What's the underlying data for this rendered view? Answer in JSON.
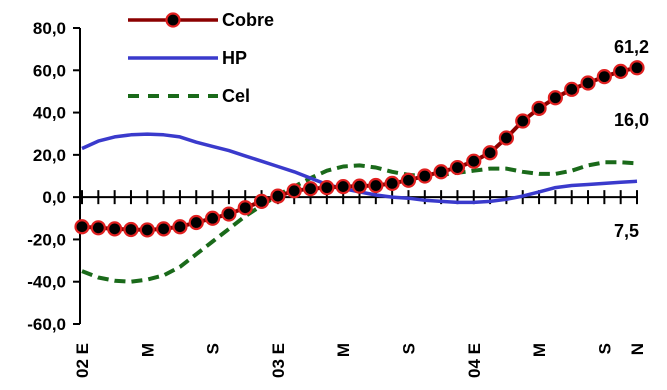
{
  "chart_data": {
    "type": "line",
    "ylim": [
      -60,
      80
    ],
    "yticks": [
      "80,0",
      "60,0",
      "40,0",
      "20,0",
      "0,0",
      "-20,0",
      "-40,0",
      "-60,0"
    ],
    "ytick_values": [
      80,
      60,
      40,
      20,
      0,
      -20,
      -40,
      -60
    ],
    "xtick_labels": [
      "02 E",
      "M",
      "S",
      "03 E",
      "M",
      "S",
      "04 E",
      "M",
      "S",
      "N"
    ],
    "xtick_index": [
      0,
      4,
      8,
      12,
      16,
      20,
      24,
      28,
      32,
      34
    ],
    "x_count": 35,
    "grid": false,
    "legend_position": "top",
    "series": [
      {
        "name": "Cobre",
        "color": "#8b0000",
        "marker": "circle",
        "values": [
          -14,
          -14.5,
          -15,
          -15.3,
          -15.5,
          -15,
          -14,
          -12,
          -10,
          -8,
          -5,
          -2,
          0.5,
          3,
          4,
          4.5,
          5,
          5.2,
          5.5,
          6.5,
          8,
          10,
          12,
          14,
          17,
          21,
          28,
          36,
          42,
          47,
          51,
          54,
          57,
          59.5,
          61.2
        ]
      },
      {
        "name": "HP",
        "color": "#3a3acc",
        "values": [
          23,
          26.5,
          28.5,
          29.5,
          29.8,
          29.5,
          28.5,
          26,
          24,
          22,
          19.5,
          17,
          14.5,
          12,
          9,
          6,
          4,
          2.5,
          1,
          0,
          -0.5,
          -1.5,
          -2,
          -2.5,
          -2.5,
          -2,
          -1,
          0.5,
          2.5,
          4.5,
          5.5,
          6,
          6.5,
          7,
          7.5
        ]
      },
      {
        "name": "Cel",
        "color": "#1a6a1a",
        "dashed": true,
        "values": [
          -35,
          -38,
          -39.5,
          -40,
          -39,
          -37,
          -33,
          -27,
          -21,
          -15,
          -9,
          -4,
          1,
          5,
          9,
          12.5,
          14.5,
          15,
          14,
          12,
          10.5,
          10,
          10.5,
          11.5,
          12.5,
          13.5,
          13.5,
          12,
          11,
          11,
          12.5,
          15,
          16.5,
          16.5,
          16
        ]
      }
    ],
    "annotations": [
      {
        "text": "61,2",
        "series": "Cobre"
      },
      {
        "text": "16,0",
        "series": "Cel"
      },
      {
        "text": "7,5",
        "series": "HP"
      }
    ]
  }
}
